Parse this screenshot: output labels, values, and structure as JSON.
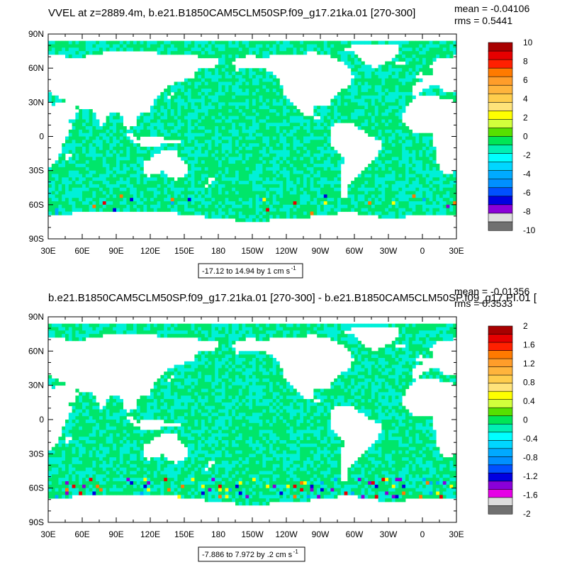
{
  "chart_data": [
    {
      "type": "heatmap",
      "title": "VVEL at z=2889.4m, b.e21.B1850CAM5CLM50SP.f09_g17.21ka.01 [270-300]",
      "stats": {
        "mean": "mean = -0.04106",
        "rms": "rms = 0.5441"
      },
      "x_ticks": [
        "30E",
        "60E",
        "90E",
        "120E",
        "150E",
        "180",
        "150W",
        "120W",
        "90W",
        "60W",
        "30W",
        "0",
        "30E"
      ],
      "y_ticks": [
        "90N",
        "60N",
        "30N",
        "0",
        "30S",
        "60S",
        "90S"
      ],
      "colorbar": {
        "labels": [
          "10",
          "8",
          "6",
          "4",
          "2",
          "0",
          "-2",
          "-4",
          "-6",
          "-8",
          "-10"
        ],
        "colors": [
          "#a80000",
          "#e60000",
          "#ff2000",
          "#ff7a00",
          "#ff9d2a",
          "#ffb43c",
          "#ffcd4c",
          "#ffe37a",
          "#ffff00",
          "#d2ff3c",
          "#56e000",
          "#00e656",
          "#00f0b4",
          "#00ffff",
          "#00d6ff",
          "#00aaff",
          "#0090ff",
          "#0050ff",
          "#0000e0",
          "#8a00d8",
          "#dddddd",
          "#707070"
        ]
      },
      "range_label": {
        "text": "-17.12 to 14.94 by 1 cm s",
        "sup": "-1"
      }
    },
    {
      "type": "heatmap",
      "title": "b.e21.B1850CAM5CLM50SP.f09_g17.21ka.01 [270-300] - b.e21.B1850CAM5CLM50SP.f09_g17.PI.01 [",
      "stats": {
        "mean": "mean = -0.01356",
        "rms": "rms = 0.3533"
      },
      "x_ticks": [
        "30E",
        "60E",
        "90E",
        "120E",
        "150E",
        "180",
        "150W",
        "120W",
        "90W",
        "60W",
        "30W",
        "0",
        "30E"
      ],
      "y_ticks": [
        "90N",
        "60N",
        "30N",
        "0",
        "30S",
        "60S",
        "90S"
      ],
      "colorbar": {
        "labels": [
          "2",
          "1.6",
          "1.2",
          "0.8",
          "0.4",
          "0",
          "-0.4",
          "-0.8",
          "-1.2",
          "-1.6",
          "-2"
        ],
        "colors": [
          "#a80000",
          "#e60000",
          "#ff2000",
          "#ff7a00",
          "#ff9d2a",
          "#ffb43c",
          "#ffcd4c",
          "#ffe37a",
          "#ffff00",
          "#d2ff3c",
          "#56e000",
          "#00e656",
          "#00f0b4",
          "#00ffff",
          "#00d6ff",
          "#00aaff",
          "#0090ff",
          "#0050ff",
          "#0000e0",
          "#8a00d8",
          "#e600e6",
          "#dddddd",
          "#707070"
        ]
      },
      "range_label": {
        "text": "-7.886 to 7.972 by .2 cm s",
        "sup": "-1"
      }
    }
  ],
  "colors": {
    "field_main": "#00e66a",
    "field_cyan": "#00f0d8",
    "land": "#ffffff"
  }
}
